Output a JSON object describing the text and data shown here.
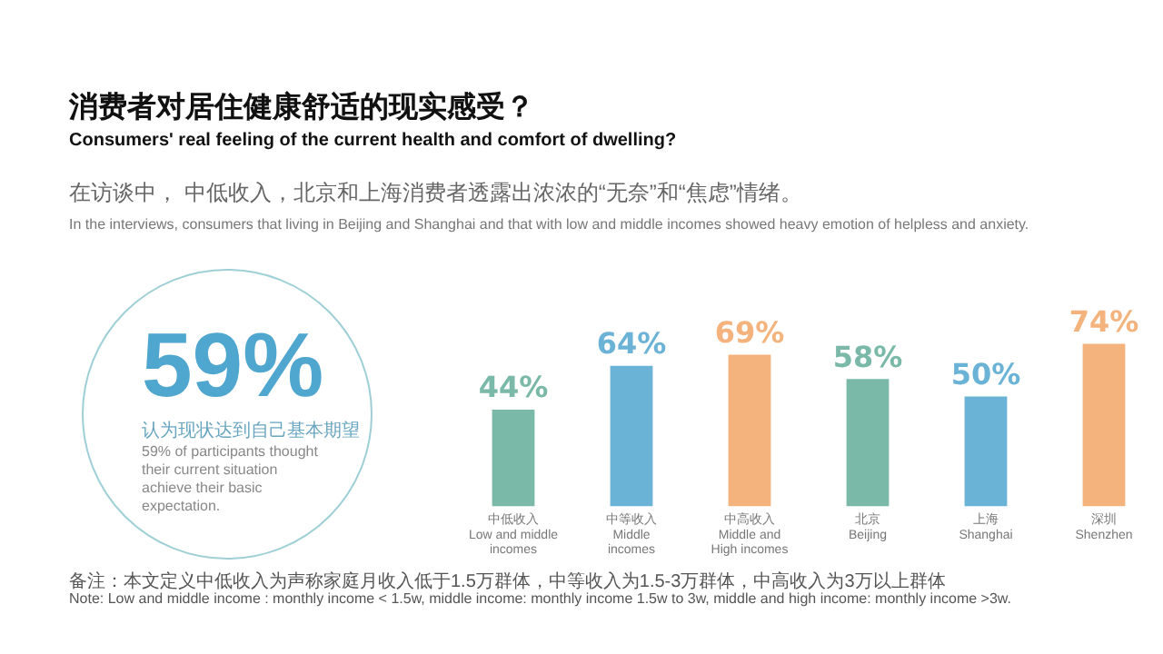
{
  "chart_data": {
    "type": "bar",
    "title": "消费者对居住健康舒适的现实感受？",
    "subtitle": "Consumers' real feeling of the current health and comfort of dwelling?",
    "categories": [
      "中低收入\nLow and middle\nincomes",
      "中等收入\nMiddle\nincomes",
      "中高收入\nMiddle and\nHigh incomes",
      "北京\nBeijing",
      "上海\nShanghai",
      "深圳\nShenzhen"
    ],
    "values": [
      44,
      64,
      69,
      58,
      50,
      74
    ],
    "colors": [
      "#7ab8a8",
      "#6bb3d6",
      "#f4b27c",
      "#7ab8a8",
      "#6bb3d6",
      "#f4b27c"
    ],
    "value_labels": [
      "44%",
      "64%",
      "69%",
      "58%",
      "50%",
      "74%"
    ],
    "grid": false,
    "legend": false,
    "annotations": [
      "在访谈中， 中低收入，北京和上海消费者透露出浓浓的“无奈”和“焦虑”情绪。",
      "In the interviews, consumers that living in Beijing and Shanghai and that with low and middle incomes showed heavy emotion of helpless and anxiety.",
      "59%",
      "认为现状达到自己基本期望",
      "59% of participants thought their current situation achieve their basic expectation.",
      "备注：本文定义中低收入为声称家庭月收入低于1.5万群体，中等收入为1.5-3万群体，中高收入为3万以上群体",
      "Note: Low and middle income : monthly income < 1.5w, middle income: monthly income 1.5w to 3w, middle and high income: monthly income >3w."
    ]
  }
}
